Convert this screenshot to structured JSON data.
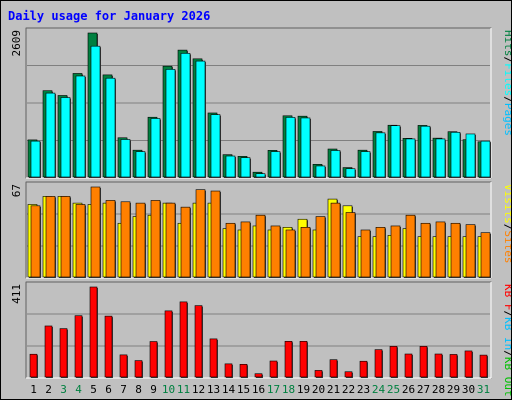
{
  "chart_data": {
    "type": "bar",
    "title": "Daily usage for January 2026",
    "categories": [
      "1",
      "2",
      "3",
      "4",
      "5",
      "6",
      "7",
      "8",
      "9",
      "10",
      "11",
      "12",
      "13",
      "14",
      "15",
      "16",
      "17",
      "18",
      "19",
      "20",
      "21",
      "22",
      "23",
      "24",
      "25",
      "26",
      "27",
      "28",
      "29",
      "30",
      "31"
    ],
    "weekend_days": [
      "3",
      "4",
      "10",
      "11",
      "17",
      "18",
      "24",
      "25",
      "31"
    ],
    "panels": [
      {
        "max_label": "2609",
        "ymax": 2609,
        "legend": [
          "Hits",
          "/",
          "Files",
          "/",
          "Pages"
        ],
        "series": [
          {
            "name": "Hits",
            "color": "#008040",
            "values": [
              672,
              1564,
              1477,
              1876,
              2609,
              1850,
              711,
              486,
              1083,
              2008,
              2299,
              2141,
              1160,
              405,
              374,
              87,
              483,
              1109,
              1102,
              230,
              507,
              171,
              486,
              825,
              938,
              701,
              935,
              704,
              821,
              676,
              638
            ]
          },
          {
            "name": "Files",
            "color": "#00ffff",
            "values": [
              650,
              1520,
              1440,
              1830,
              2370,
              1790,
              680,
              460,
              1060,
              1950,
              2240,
              2100,
              1130,
              380,
              350,
              60,
              460,
              1080,
              1070,
              200,
              480,
              150,
              460,
              800,
              930,
              690,
              920,
              690,
              810,
              780,
              650
            ]
          },
          {
            "name": "Pages",
            "color": "#00c0ff",
            "values": []
          }
        ]
      },
      {
        "max_label": "67",
        "ymax": 67,
        "legend": [
          "Visits",
          "/",
          "Sites"
        ],
        "series": [
          {
            "name": "Visits",
            "color": "#ffff00",
            "values": [
              54,
              60,
              60,
              55,
              54,
              55,
              40,
              45,
              46,
              55,
              40,
              55,
              55,
              36,
              35,
              38,
              35,
              37,
              43,
              35,
              58,
              53,
              30,
              30,
              31,
              36,
              30,
              30,
              30,
              30,
              30
            ]
          },
          {
            "name": "Sites",
            "color": "#ff8000",
            "values": [
              53,
              60,
              60,
              54,
              67,
              57,
              56,
              55,
              57,
              55,
              52,
              65,
              64,
              40,
              41,
              46,
              38,
              35,
              37,
              45,
              55,
              48,
              35,
              37,
              38,
              46,
              40,
              41,
              40,
              39,
              33
            ]
          }
        ]
      },
      {
        "max_label": "411",
        "ymax": 411,
        "legend": [
          "KB F",
          "/",
          "KB In",
          "/",
          "KB Out"
        ],
        "series": [
          {
            "name": "KB F",
            "color": "#ff0000",
            "values": [
              104,
              233,
              221,
              280,
              411,
              278,
              101,
              75,
              162,
              302,
              343,
              326,
              174,
              60,
              58,
              15,
              73,
              163,
              163,
              30,
              79,
              24,
              72,
              125,
              140,
              105,
              140,
              105,
              103,
              119,
              100
            ]
          }
        ]
      }
    ],
    "colors": {
      "hits": "#008040",
      "files": "#00ffff",
      "pages": "#00c0ff",
      "visits": "#ffff00",
      "sites": "#ff8000",
      "kbin": "#00c0ff",
      "kbout": "#00c000",
      "kbf": "#ff0000",
      "title": "#0000ff",
      "weekend": "#008040",
      "weekday": "#000000",
      "plot_bg": "#c0c0c0",
      "outer_bg": "#c0c0c0"
    }
  }
}
